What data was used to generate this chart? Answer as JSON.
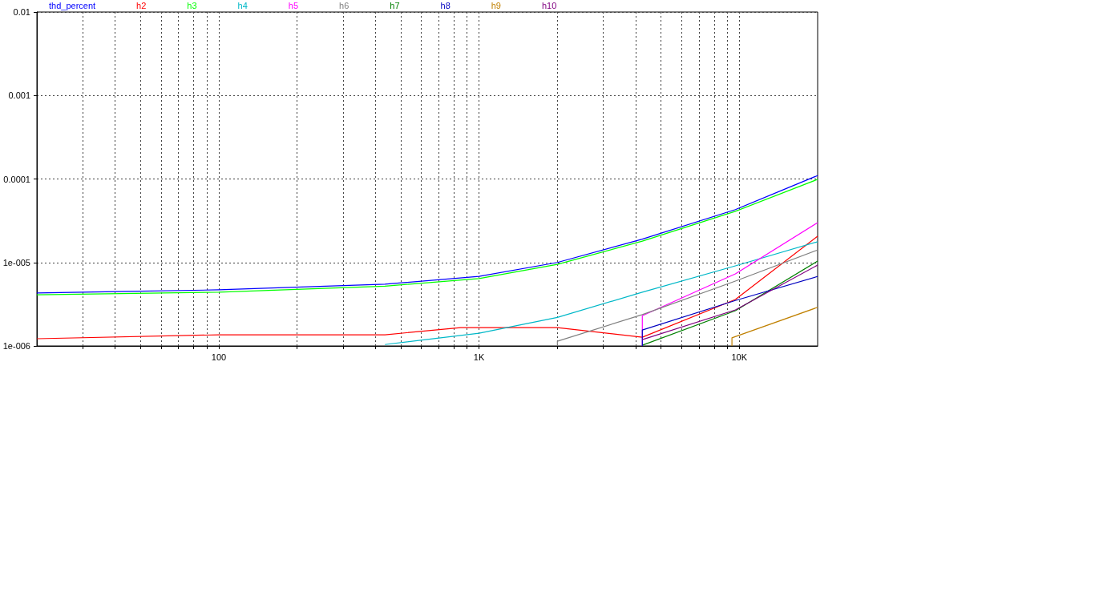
{
  "chart_data": {
    "type": "line",
    "log": "xy",
    "grid": true,
    "legend": "top",
    "xlim": [
      20,
      20000
    ],
    "ylim": [
      1e-06,
      0.01
    ],
    "xticks": [
      {
        "value": 30,
        "label": null
      },
      {
        "value": 40,
        "label": null
      },
      {
        "value": 50,
        "label": null
      },
      {
        "value": 60,
        "label": null
      },
      {
        "value": 70,
        "label": null
      },
      {
        "value": 80,
        "label": null
      },
      {
        "value": 90,
        "label": null
      },
      {
        "value": 100,
        "label": "100"
      },
      {
        "value": 200,
        "label": null
      },
      {
        "value": 300,
        "label": null
      },
      {
        "value": 400,
        "label": null
      },
      {
        "value": 500,
        "label": null
      },
      {
        "value": 600,
        "label": null
      },
      {
        "value": 700,
        "label": null
      },
      {
        "value": 800,
        "label": null
      },
      {
        "value": 900,
        "label": null
      },
      {
        "value": 1000,
        "label": "1K"
      },
      {
        "value": 2000,
        "label": null
      },
      {
        "value": 3000,
        "label": null
      },
      {
        "value": 4000,
        "label": null
      },
      {
        "value": 5000,
        "label": null
      },
      {
        "value": 6000,
        "label": null
      },
      {
        "value": 7000,
        "label": null
      },
      {
        "value": 8000,
        "label": null
      },
      {
        "value": 9000,
        "label": null
      },
      {
        "value": 10000,
        "label": "10K"
      }
    ],
    "yticks": [
      {
        "value": 1e-06,
        "label": "1e-006"
      },
      {
        "value": 1e-05,
        "label": "1e-005"
      },
      0.0001,
      0.001,
      0.01
    ],
    "series": [
      {
        "name": "thd_percent",
        "color": "#0000ff",
        "x": [
          20,
          45,
          100,
          435,
          1000,
          2000,
          4240,
          9660,
          20000
        ],
        "values": [
          4.3e-06,
          4.5e-06,
          4.7e-06,
          5.5e-06,
          6.8e-06,
          1e-05,
          1.9e-05,
          4.3e-05,
          0.00011
        ]
      },
      {
        "name": "h2",
        "color": "#ff0000",
        "x": [
          20,
          100,
          435,
          850,
          2000,
          4240,
          9660,
          20000
        ],
        "values": [
          1.22e-06,
          1.36e-06,
          1.36e-06,
          1.66e-06,
          1.66e-06,
          1.27e-06,
          3.6e-06,
          2.06e-05
        ]
      },
      {
        "name": "h3",
        "color": "#00ff00",
        "x": [
          20,
          100,
          435,
          1000,
          2000,
          4240,
          9660,
          20000
        ],
        "values": [
          4.1e-06,
          4.4e-06,
          5.2e-06,
          6.4e-06,
          9.5e-06,
          1.8e-05,
          4.1e-05,
          9.9e-05
        ]
      },
      {
        "name": "h4",
        "color": "#00b8c8",
        "x": [
          435,
          1000,
          2000,
          4240,
          9660,
          20000
        ],
        "values": [
          1.04e-06,
          1.42e-06,
          2.2e-06,
          4.4e-06,
          9.1e-06,
          1.77e-05
        ]
      },
      {
        "name": "h5",
        "color": "#ff00ff",
        "x": [
          4240,
          4240,
          9660,
          20000
        ],
        "values": [
          1e-06,
          2.3e-06,
          7.3e-06,
          3e-05
        ]
      },
      {
        "name": "h6",
        "color": "#808080",
        "x": [
          2000,
          2000,
          4240,
          9660,
          20000
        ],
        "values": [
          1e-06,
          1.14e-06,
          2.37e-06,
          5.98e-06,
          1.41e-05
        ]
      },
      {
        "name": "h7",
        "color": "#008000",
        "x": [
          4240,
          9660,
          20000
        ],
        "values": [
          1.02e-06,
          2.64e-06,
          1.04e-05
        ]
      },
      {
        "name": "h8",
        "color": "#0000c0",
        "x": [
          4240,
          4240,
          9660,
          20000
        ],
        "values": [
          1e-06,
          1.55e-06,
          3.5e-06,
          6.8e-06
        ]
      },
      {
        "name": "h9",
        "color": "#c08000",
        "x": [
          9370,
          9370,
          20000
        ],
        "values": [
          1e-06,
          1.25e-06,
          2.9e-06
        ]
      },
      {
        "name": "h10",
        "color": "#800080",
        "x": [
          4240,
          9660,
          20000
        ],
        "values": [
          1.19e-06,
          2.7e-06,
          9.3e-06
        ]
      }
    ]
  }
}
